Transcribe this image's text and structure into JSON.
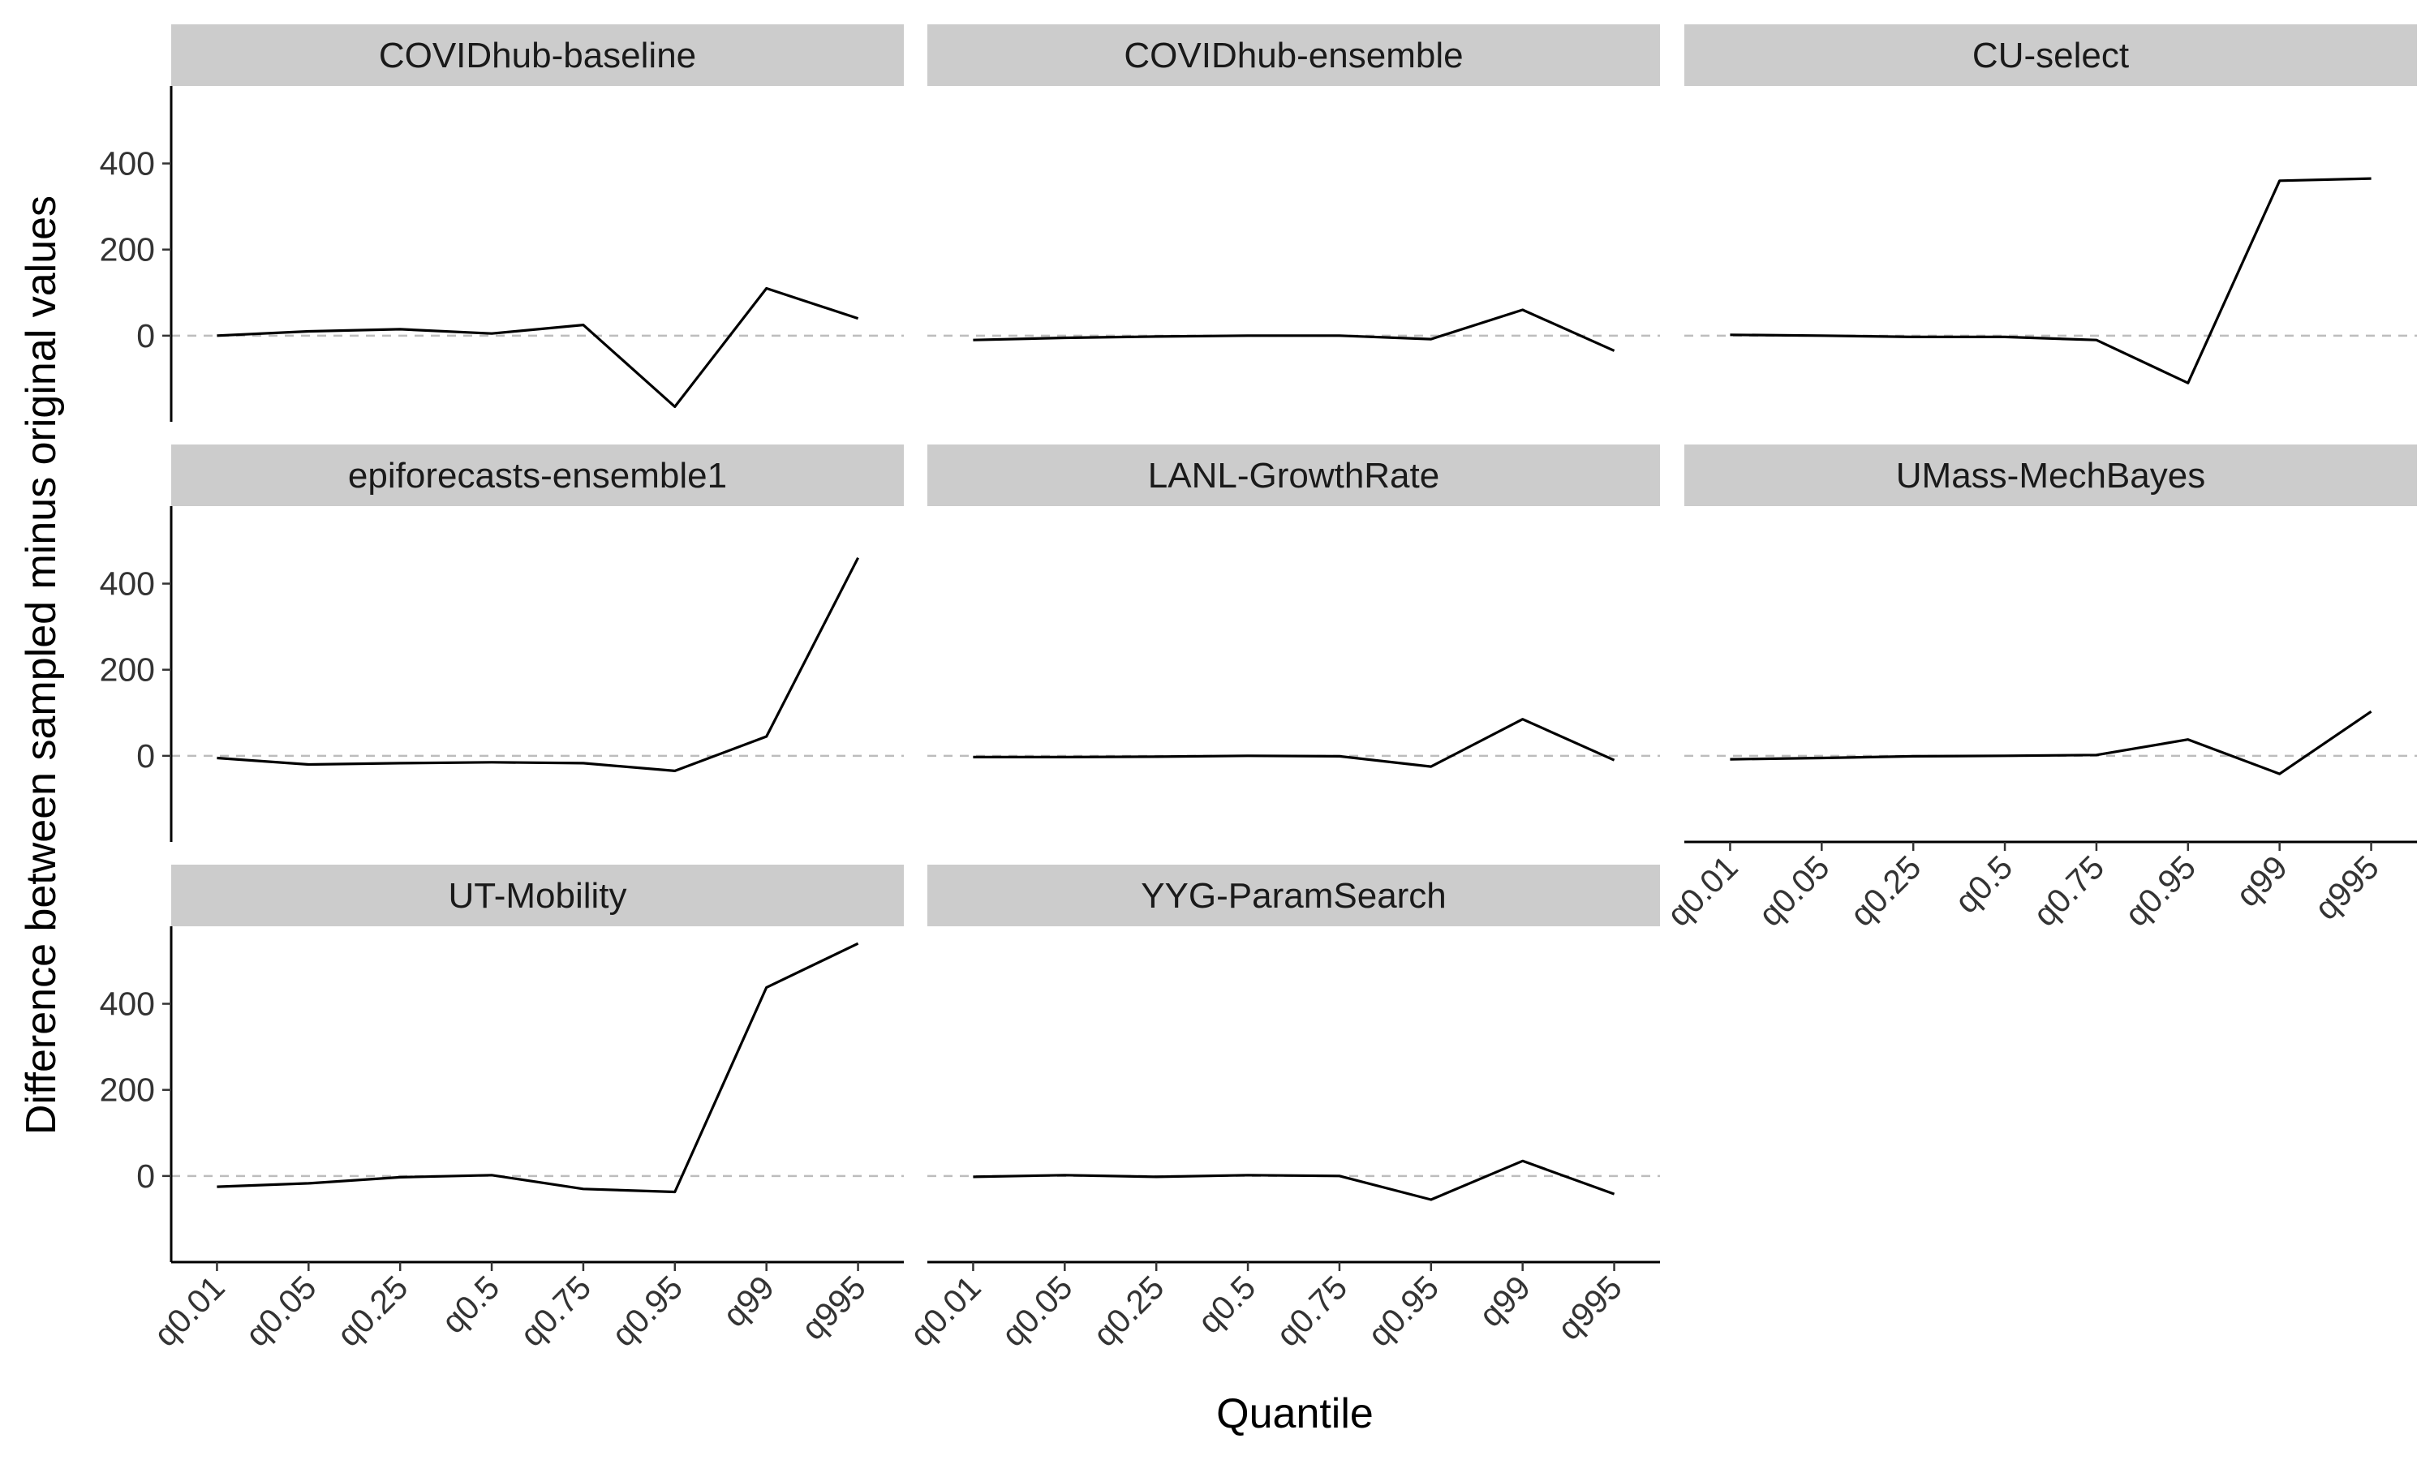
{
  "chart_data": {
    "type": "line",
    "layout": "facet_wrap",
    "xlabel": "Quantile",
    "ylabel": "Difference between sampled minus original values",
    "categories": [
      "q0.01",
      "q0.05",
      "q0.25",
      "q0.5",
      "q0.75",
      "q0.95",
      "q99",
      "q995"
    ],
    "y_ticks": [
      0,
      200,
      400
    ],
    "ylim": [
      -200,
      580
    ],
    "reference_line": {
      "y": 0,
      "style": "dashed",
      "color": "#bdbdbd"
    },
    "line_color": "#000000",
    "strip_color": "#cccccc",
    "grid": false,
    "facets": [
      {
        "name": "COVIDhub-baseline",
        "values": [
          0,
          10,
          15,
          5,
          25,
          -165,
          110,
          40
        ]
      },
      {
        "name": "COVIDhub-ensemble",
        "values": [
          -10,
          -5,
          -2,
          0,
          0,
          -8,
          60,
          -35
        ]
      },
      {
        "name": "CU-select",
        "values": [
          2,
          0,
          -3,
          -3,
          -10,
          -110,
          360,
          365
        ]
      },
      {
        "name": "epiforecasts-ensemble1",
        "values": [
          -5,
          -20,
          -17,
          -15,
          -17,
          -35,
          45,
          460
        ]
      },
      {
        "name": "LANL-GrowthRate",
        "values": [
          -3,
          -3,
          -2,
          0,
          -1,
          -25,
          85,
          -10
        ]
      },
      {
        "name": "UMass-MechBayes",
        "values": [
          -8,
          -5,
          -1,
          0,
          2,
          38,
          -42,
          103
        ]
      },
      {
        "name": "UT-Mobility",
        "values": [
          -25,
          -17,
          -3,
          2,
          -30,
          -37,
          438,
          540
        ]
      },
      {
        "name": "YYG-ParamSearch",
        "values": [
          -2,
          2,
          -2,
          2,
          0,
          -55,
          35,
          -42
        ]
      }
    ]
  }
}
